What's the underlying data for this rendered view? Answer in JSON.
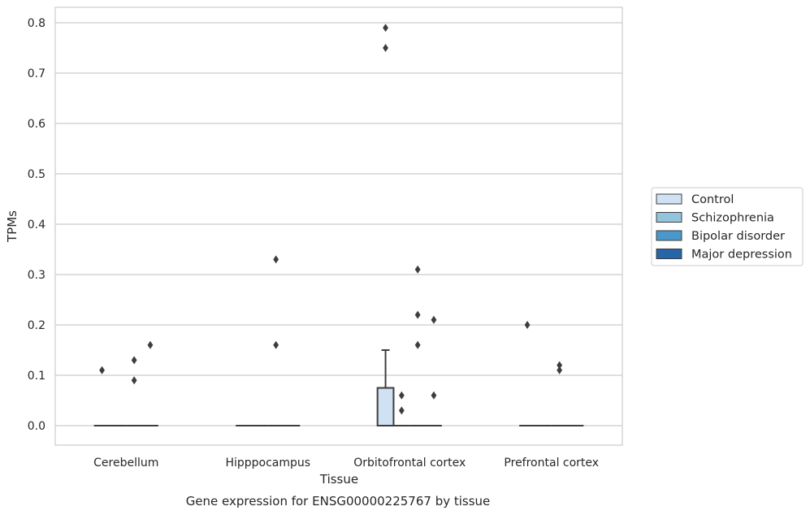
{
  "caption": "Gene expression for ENSG00000225767 by tissue",
  "chart_data": {
    "type": "box",
    "xlabel": "Tissue",
    "ylabel": "TPMs",
    "ylim": [
      -0.04,
      0.83
    ],
    "yticks": [
      0.0,
      0.1,
      0.2,
      0.3,
      0.4,
      0.5,
      0.6,
      0.7,
      0.8
    ],
    "ytick_labels": [
      "0.0",
      "0.1",
      "0.2",
      "0.3",
      "0.4",
      "0.5",
      "0.6",
      "0.7",
      "0.8"
    ],
    "grid": "horizontal",
    "legend_position": "right",
    "categories": [
      "Cerebellum",
      "Hipppocampus",
      "Orbitofrontal cortex",
      "Prefrontal cortex"
    ],
    "series": [
      {
        "name": "Control",
        "color": "#cfe1f2",
        "boxes": [
          {
            "category": "Cerebellum",
            "q1": 0,
            "median": 0,
            "q3": 0,
            "whisker_low": 0,
            "whisker_high": 0,
            "outliers": [
              0.11
            ]
          },
          {
            "category": "Hipppocampus",
            "q1": 0,
            "median": 0,
            "q3": 0,
            "whisker_low": 0,
            "whisker_high": 0,
            "outliers": []
          },
          {
            "category": "Orbitofrontal cortex",
            "q1": 0,
            "median": 0,
            "q3": 0.075,
            "whisker_low": 0,
            "whisker_high": 0.15,
            "outliers": [
              0.75,
              0.79
            ]
          },
          {
            "category": "Prefrontal cortex",
            "q1": 0,
            "median": 0,
            "q3": 0,
            "whisker_low": 0,
            "whisker_high": 0,
            "outliers": [
              0.2
            ]
          }
        ]
      },
      {
        "name": "Schizophrenia",
        "color": "#93c4de",
        "boxes": [
          {
            "category": "Cerebellum",
            "q1": 0,
            "median": 0,
            "q3": 0,
            "whisker_low": 0,
            "whisker_high": 0,
            "outliers": []
          },
          {
            "category": "Hipppocampus",
            "q1": 0,
            "median": 0,
            "q3": 0,
            "whisker_low": 0,
            "whisker_high": 0,
            "outliers": []
          },
          {
            "category": "Orbitofrontal cortex",
            "q1": 0,
            "median": 0,
            "q3": 0,
            "whisker_low": 0,
            "whisker_high": 0,
            "outliers": [
              0.03,
              0.06
            ]
          },
          {
            "category": "Prefrontal cortex",
            "q1": 0,
            "median": 0,
            "q3": 0,
            "whisker_low": 0,
            "whisker_high": 0,
            "outliers": []
          }
        ]
      },
      {
        "name": "Bipolar disorder",
        "color": "#4a98c9",
        "boxes": [
          {
            "category": "Cerebellum",
            "q1": 0,
            "median": 0,
            "q3": 0,
            "whisker_low": 0,
            "whisker_high": 0,
            "outliers": [
              0.09,
              0.13
            ]
          },
          {
            "category": "Hipppocampus",
            "q1": 0,
            "median": 0,
            "q3": 0,
            "whisker_low": 0,
            "whisker_high": 0,
            "outliers": [
              0.16,
              0.33
            ]
          },
          {
            "category": "Orbitofrontal cortex",
            "q1": 0,
            "median": 0,
            "q3": 0,
            "whisker_low": 0,
            "whisker_high": 0,
            "outliers": [
              0.16,
              0.22,
              0.31
            ]
          },
          {
            "category": "Prefrontal cortex",
            "q1": 0,
            "median": 0,
            "q3": 0,
            "whisker_low": 0,
            "whisker_high": 0,
            "outliers": [
              0.11,
              0.12
            ]
          }
        ]
      },
      {
        "name": "Major depression",
        "color": "#2565a8",
        "boxes": [
          {
            "category": "Cerebellum",
            "q1": 0,
            "median": 0,
            "q3": 0,
            "whisker_low": 0,
            "whisker_high": 0,
            "outliers": [
              0.16
            ]
          },
          {
            "category": "Hipppocampus",
            "q1": 0,
            "median": 0,
            "q3": 0,
            "whisker_low": 0,
            "whisker_high": 0,
            "outliers": []
          },
          {
            "category": "Orbitofrontal cortex",
            "q1": 0,
            "median": 0,
            "q3": 0,
            "whisker_low": 0,
            "whisker_high": 0,
            "outliers": [
              0.06,
              0.21
            ]
          },
          {
            "category": "Prefrontal cortex",
            "q1": 0,
            "median": 0,
            "q3": 0,
            "whisker_low": 0,
            "whisker_high": 0,
            "outliers": []
          }
        ]
      }
    ]
  }
}
